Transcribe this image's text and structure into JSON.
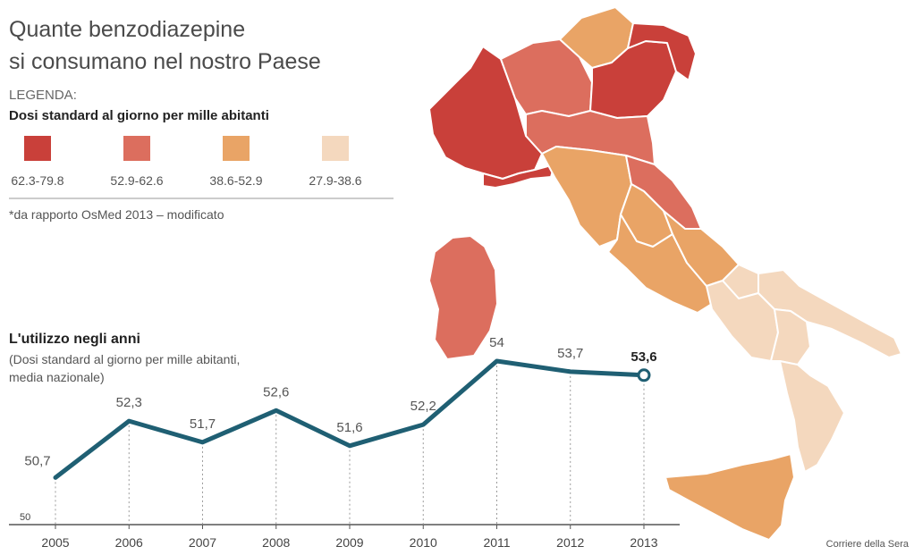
{
  "infographic": {
    "title_lines": [
      "Quante benzodiazepine",
      "si consumano nel nostro Paese"
    ],
    "legend": {
      "heading": "LEGENDA:",
      "subtitle": "Dosi standard al giorno per mille abitanti",
      "classes": [
        {
          "range": "62.3-79.8",
          "color": "#c9403a"
        },
        {
          "range": "52.9-62.6",
          "color": "#dc6e5e"
        },
        {
          "range": "38.6-52.9",
          "color": "#e9a466"
        },
        {
          "range": "27.9-38.6",
          "color": "#f4d8be"
        }
      ],
      "footnote": "*da rapporto OsMed 2013 – modificato"
    },
    "credit": "Corriere della Sera"
  },
  "map": {
    "regions": [
      {
        "name": "piemonte-valle-aosta",
        "class": 0
      },
      {
        "name": "lombardia",
        "class": 1
      },
      {
        "name": "trentino-alto-adige",
        "class": 2
      },
      {
        "name": "veneto",
        "class": 0
      },
      {
        "name": "friuli-venezia-giulia",
        "class": 0
      },
      {
        "name": "liguria",
        "class": 0
      },
      {
        "name": "emilia-romagna",
        "class": 1
      },
      {
        "name": "toscana",
        "class": 2
      },
      {
        "name": "marche",
        "class": 1
      },
      {
        "name": "umbria",
        "class": 2
      },
      {
        "name": "lazio",
        "class": 2
      },
      {
        "name": "abruzzo",
        "class": 2
      },
      {
        "name": "molise",
        "class": 3
      },
      {
        "name": "campania",
        "class": 3
      },
      {
        "name": "puglia",
        "class": 3
      },
      {
        "name": "basilicata",
        "class": 3
      },
      {
        "name": "calabria",
        "class": 3
      },
      {
        "name": "sicilia",
        "class": 2
      },
      {
        "name": "sardegna",
        "class": 1
      }
    ]
  },
  "chart_data": {
    "type": "line",
    "title": "L'utilizzo negli anni",
    "subtitle_lines": [
      "(Dosi standard al giorno per mille abitanti,",
      "media nazionale)"
    ],
    "x": [
      "2005",
      "2006",
      "2007",
      "2008",
      "2009",
      "2010",
      "2011",
      "2012",
      "2013"
    ],
    "values": [
      50.7,
      52.3,
      51.7,
      52.6,
      51.6,
      52.2,
      54,
      53.7,
      53.6
    ],
    "labels": [
      "50,7",
      "52,3",
      "51,7",
      "52,6",
      "51,6",
      "52,2",
      "54",
      "53,7",
      "53,6"
    ],
    "ylim": [
      50,
      54
    ],
    "y_tick_label": "50",
    "line_color": "#1f5f73",
    "grid": "vertical dotted lines at each year"
  }
}
